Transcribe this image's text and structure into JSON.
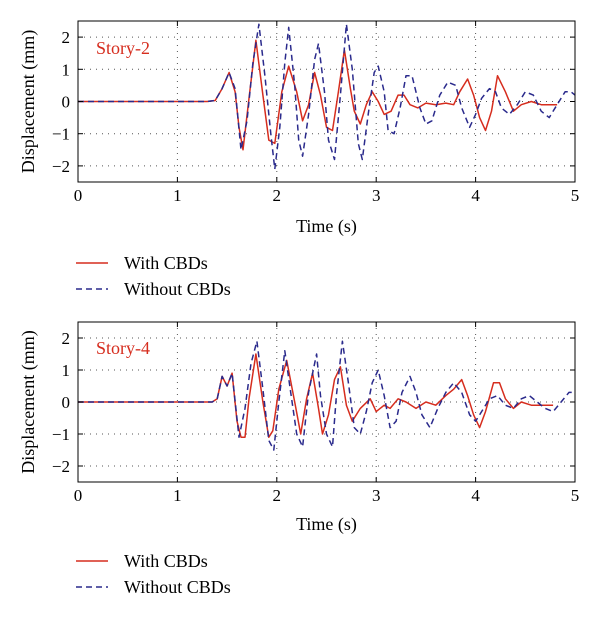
{
  "colors": {
    "with_cbds": "#d62d1e",
    "without_cbds": "#2a2a8c",
    "grid": "#555555",
    "panel_label": "#d62d1e"
  },
  "chart_data": [
    {
      "type": "line",
      "panel_label": "Story-2",
      "xlabel": "Time (s)",
      "ylabel": "Displacement (mm)",
      "xlim": [
        0,
        5
      ],
      "ylim": [
        -2.5,
        2.5
      ],
      "x_ticks": [
        0,
        1,
        2,
        3,
        4,
        5
      ],
      "y_ticks": [
        -2,
        -1,
        0,
        1,
        2
      ],
      "grid": "dotted",
      "legend": "below",
      "series": [
        {
          "name": "With CBDs",
          "style": "solid",
          "color": "#d62d1e",
          "points": [
            [
              0,
              0
            ],
            [
              1.3,
              0
            ],
            [
              1.38,
              0.03
            ],
            [
              1.45,
              0.4
            ],
            [
              1.52,
              0.9
            ],
            [
              1.58,
              0.3
            ],
            [
              1.62,
              -0.8
            ],
            [
              1.66,
              -1.5
            ],
            [
              1.72,
              0.1
            ],
            [
              1.79,
              1.9
            ],
            [
              1.86,
              0.2
            ],
            [
              1.92,
              -1.2
            ],
            [
              1.98,
              -1.3
            ],
            [
              2.05,
              0.3
            ],
            [
              2.12,
              1.1
            ],
            [
              2.2,
              0.3
            ],
            [
              2.26,
              -0.6
            ],
            [
              2.32,
              -0.1
            ],
            [
              2.38,
              0.9
            ],
            [
              2.44,
              0.2
            ],
            [
              2.5,
              -0.8
            ],
            [
              2.56,
              -0.9
            ],
            [
              2.62,
              0.3
            ],
            [
              2.68,
              1.6
            ],
            [
              2.74,
              0.4
            ],
            [
              2.78,
              -0.3
            ],
            [
              2.84,
              -0.7
            ],
            [
              2.9,
              -0.1
            ],
            [
              2.96,
              0.3
            ],
            [
              3.02,
              0.0
            ],
            [
              3.08,
              -0.4
            ],
            [
              3.15,
              -0.3
            ],
            [
              3.22,
              0.2
            ],
            [
              3.28,
              0.2
            ],
            [
              3.34,
              -0.1
            ],
            [
              3.42,
              -0.2
            ],
            [
              3.5,
              -0.05
            ],
            [
              3.6,
              -0.1
            ],
            [
              3.7,
              -0.05
            ],
            [
              3.78,
              -0.1
            ],
            [
              3.84,
              0.3
            ],
            [
              3.92,
              0.7
            ],
            [
              3.98,
              0.2
            ],
            [
              4.04,
              -0.5
            ],
            [
              4.1,
              -0.9
            ],
            [
              4.16,
              -0.3
            ],
            [
              4.22,
              0.8
            ],
            [
              4.3,
              0.3
            ],
            [
              4.38,
              -0.3
            ],
            [
              4.46,
              -0.1
            ],
            [
              4.56,
              0.0
            ],
            [
              4.66,
              -0.1
            ],
            [
              4.74,
              -0.1
            ],
            [
              4.82,
              -0.1
            ]
          ]
        },
        {
          "name": "Without CBDs",
          "style": "dashed",
          "color": "#2a2a8c",
          "points": [
            [
              0,
              0
            ],
            [
              1.3,
              0
            ],
            [
              1.38,
              0.03
            ],
            [
              1.45,
              0.4
            ],
            [
              1.52,
              0.9
            ],
            [
              1.58,
              0.4
            ],
            [
              1.64,
              -1.5
            ],
            [
              1.7,
              -0.6
            ],
            [
              1.76,
              1.2
            ],
            [
              1.82,
              2.4
            ],
            [
              1.88,
              0.8
            ],
            [
              1.94,
              -1.0
            ],
            [
              1.98,
              -2.1
            ],
            [
              2.03,
              -0.8
            ],
            [
              2.08,
              1.2
            ],
            [
              2.12,
              2.3
            ],
            [
              2.18,
              0.5
            ],
            [
              2.22,
              -1.2
            ],
            [
              2.26,
              -1.7
            ],
            [
              2.32,
              -0.4
            ],
            [
              2.38,
              1.3
            ],
            [
              2.42,
              1.8
            ],
            [
              2.48,
              0.3
            ],
            [
              2.52,
              -1.2
            ],
            [
              2.58,
              -1.8
            ],
            [
              2.64,
              0.2
            ],
            [
              2.7,
              2.4
            ],
            [
              2.76,
              1.0
            ],
            [
              2.82,
              -1.3
            ],
            [
              2.86,
              -1.8
            ],
            [
              2.92,
              -0.4
            ],
            [
              2.98,
              0.9
            ],
            [
              3.02,
              1.1
            ],
            [
              3.08,
              0.3
            ],
            [
              3.12,
              -0.9
            ],
            [
              3.18,
              -1.0
            ],
            [
              3.24,
              -0.2
            ],
            [
              3.3,
              0.8
            ],
            [
              3.36,
              0.8
            ],
            [
              3.44,
              -0.2
            ],
            [
              3.5,
              -0.7
            ],
            [
              3.56,
              -0.6
            ],
            [
              3.64,
              0.2
            ],
            [
              3.72,
              0.6
            ],
            [
              3.8,
              0.5
            ],
            [
              3.86,
              -0.2
            ],
            [
              3.94,
              -0.8
            ],
            [
              4.0,
              -0.4
            ],
            [
              4.06,
              0.1
            ],
            [
              4.14,
              0.4
            ],
            [
              4.2,
              0.3
            ],
            [
              4.26,
              -0.2
            ],
            [
              4.34,
              -0.4
            ],
            [
              4.42,
              -0.1
            ],
            [
              4.5,
              0.3
            ],
            [
              4.58,
              0.2
            ],
            [
              4.66,
              -0.3
            ],
            [
              4.74,
              -0.5
            ],
            [
              4.82,
              -0.1
            ],
            [
              4.9,
              0.3
            ],
            [
              4.96,
              0.3
            ],
            [
              5.0,
              0.2
            ]
          ]
        }
      ]
    },
    {
      "type": "line",
      "panel_label": "Story-4",
      "xlabel": "Time (s)",
      "ylabel": "Displacement (mm)",
      "xlim": [
        0,
        5
      ],
      "ylim": [
        -2.5,
        2.5
      ],
      "x_ticks": [
        0,
        1,
        2,
        3,
        4,
        5
      ],
      "y_ticks": [
        -2,
        -1,
        0,
        1,
        2
      ],
      "grid": "dotted",
      "legend": "below",
      "series": [
        {
          "name": "With CBDs",
          "style": "solid",
          "color": "#d62d1e",
          "points": [
            [
              0,
              0
            ],
            [
              1.35,
              0
            ],
            [
              1.4,
              0.1
            ],
            [
              1.45,
              0.8
            ],
            [
              1.5,
              0.5
            ],
            [
              1.55,
              0.9
            ],
            [
              1.6,
              -0.6
            ],
            [
              1.64,
              -1.1
            ],
            [
              1.68,
              -1.1
            ],
            [
              1.72,
              0.1
            ],
            [
              1.79,
              1.5
            ],
            [
              1.86,
              0.0
            ],
            [
              1.92,
              -1.1
            ],
            [
              1.96,
              -0.9
            ],
            [
              2.02,
              0.4
            ],
            [
              2.1,
              1.3
            ],
            [
              2.18,
              0.0
            ],
            [
              2.24,
              -1.0
            ],
            [
              2.3,
              0.1
            ],
            [
              2.36,
              0.9
            ],
            [
              2.42,
              -0.2
            ],
            [
              2.46,
              -1.0
            ],
            [
              2.52,
              -0.4
            ],
            [
              2.58,
              0.7
            ],
            [
              2.64,
              1.1
            ],
            [
              2.7,
              -0.1
            ],
            [
              2.76,
              -0.6
            ],
            [
              2.84,
              -0.2
            ],
            [
              2.94,
              0.1
            ],
            [
              3.0,
              -0.3
            ],
            [
              3.08,
              -0.1
            ],
            [
              3.14,
              -0.2
            ],
            [
              3.22,
              0.1
            ],
            [
              3.3,
              0.0
            ],
            [
              3.4,
              -0.2
            ],
            [
              3.5,
              0.0
            ],
            [
              3.6,
              -0.1
            ],
            [
              3.7,
              0.2
            ],
            [
              3.78,
              0.4
            ],
            [
              3.86,
              0.7
            ],
            [
              3.92,
              0.2
            ],
            [
              3.98,
              -0.4
            ],
            [
              4.04,
              -0.8
            ],
            [
              4.1,
              -0.3
            ],
            [
              4.18,
              0.6
            ],
            [
              4.24,
              0.6
            ],
            [
              4.3,
              0.1
            ],
            [
              4.38,
              -0.2
            ],
            [
              4.46,
              0.0
            ],
            [
              4.56,
              -0.1
            ],
            [
              4.66,
              -0.1
            ],
            [
              4.78,
              -0.1
            ]
          ]
        },
        {
          "name": "Without CBDs",
          "style": "dashed",
          "color": "#2a2a8c",
          "points": [
            [
              0,
              0
            ],
            [
              1.35,
              0
            ],
            [
              1.4,
              0.1
            ],
            [
              1.45,
              0.8
            ],
            [
              1.5,
              0.5
            ],
            [
              1.55,
              0.9
            ],
            [
              1.62,
              -1.1
            ],
            [
              1.68,
              -0.2
            ],
            [
              1.74,
              1.2
            ],
            [
              1.8,
              1.9
            ],
            [
              1.86,
              0.4
            ],
            [
              1.92,
              -1.2
            ],
            [
              1.97,
              -1.5
            ],
            [
              2.02,
              0.0
            ],
            [
              2.08,
              1.6
            ],
            [
              2.14,
              0.3
            ],
            [
              2.2,
              -1.0
            ],
            [
              2.26,
              -1.4
            ],
            [
              2.32,
              0.3
            ],
            [
              2.4,
              1.5
            ],
            [
              2.44,
              0.2
            ],
            [
              2.5,
              -1.0
            ],
            [
              2.56,
              -1.4
            ],
            [
              2.6,
              0.2
            ],
            [
              2.66,
              1.9
            ],
            [
              2.72,
              0.6
            ],
            [
              2.78,
              -0.8
            ],
            [
              2.84,
              -1.0
            ],
            [
              2.9,
              -0.3
            ],
            [
              2.96,
              0.6
            ],
            [
              3.02,
              1.0
            ],
            [
              3.08,
              0.2
            ],
            [
              3.14,
              -0.8
            ],
            [
              3.2,
              -0.6
            ],
            [
              3.26,
              0.3
            ],
            [
              3.34,
              0.8
            ],
            [
              3.4,
              0.3
            ],
            [
              3.46,
              -0.4
            ],
            [
              3.54,
              -0.8
            ],
            [
              3.62,
              -0.2
            ],
            [
              3.7,
              0.3
            ],
            [
              3.78,
              0.6
            ],
            [
              3.86,
              0.3
            ],
            [
              3.94,
              -0.4
            ],
            [
              4.0,
              -0.6
            ],
            [
              4.06,
              -0.3
            ],
            [
              4.14,
              0.1
            ],
            [
              4.22,
              0.2
            ],
            [
              4.3,
              -0.1
            ],
            [
              4.38,
              -0.2
            ],
            [
              4.46,
              0.1
            ],
            [
              4.54,
              0.2
            ],
            [
              4.62,
              0.0
            ],
            [
              4.7,
              -0.2
            ],
            [
              4.78,
              -0.3
            ],
            [
              4.86,
              0.0
            ],
            [
              4.94,
              0.3
            ],
            [
              5.0,
              0.3
            ]
          ]
        }
      ]
    }
  ]
}
